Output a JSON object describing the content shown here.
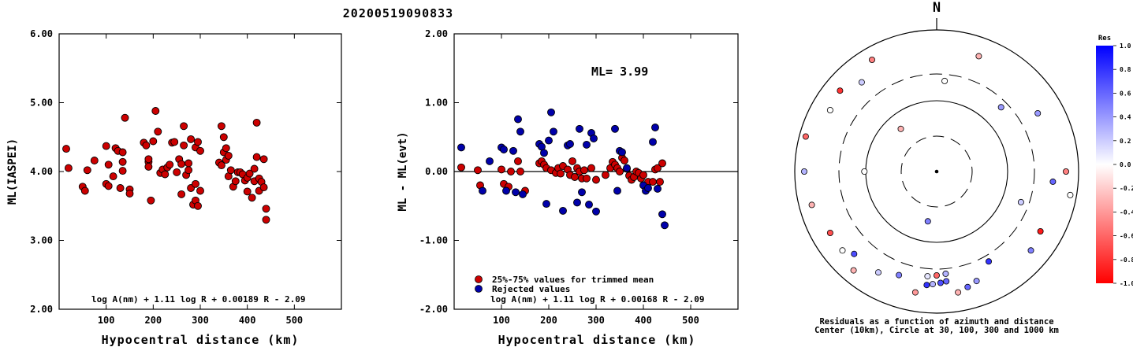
{
  "figure_title": "20200519090833",
  "chart_data": [
    {
      "type": "scatter",
      "ylabel": "ML(IASPEI)",
      "xlabel": "Hypocentral distance (km)",
      "xlim": [
        0,
        600
      ],
      "ylim": [
        2.0,
        6.0
      ],
      "xticks": [
        "100",
        "200",
        "300",
        "400",
        "500"
      ],
      "yticks": [
        "2.00",
        "3.00",
        "4.00",
        "5.00",
        "6.00"
      ],
      "grid": false,
      "formula": "log A(nm) + 1.11 log R + 0.00189 R - 2.09",
      "series": [
        {
          "color": "#cc0000",
          "x": [
            15,
            20,
            50,
            55,
            60,
            75,
            100,
            100,
            105,
            105,
            115,
            120,
            125,
            130,
            135,
            135,
            135,
            140,
            150,
            150,
            180,
            185,
            190,
            190,
            190,
            195,
            200,
            205,
            210,
            215,
            220,
            225,
            230,
            235,
            240,
            245,
            250,
            255,
            260,
            260,
            265,
            265,
            270,
            275,
            275,
            280,
            280,
            285,
            290,
            290,
            290,
            295,
            295,
            300,
            300,
            340,
            345,
            345,
            350,
            350,
            355,
            355,
            360,
            360,
            365,
            370,
            375,
            380,
            385,
            390,
            395,
            400,
            400,
            405,
            410,
            415,
            415,
            420,
            420,
            425,
            425,
            430,
            435,
            435,
            440,
            440
          ],
          "y": [
            4.33,
            4.05,
            3.78,
            3.72,
            4.02,
            4.16,
            4.37,
            3.82,
            3.79,
            4.1,
            3.93,
            4.34,
            4.3,
            3.76,
            4.28,
            4.14,
            4.01,
            4.78,
            3.74,
            3.68,
            4.42,
            4.38,
            4.14,
            4.18,
            4.07,
            3.58,
            4.44,
            4.88,
            4.58,
            3.98,
            4.03,
            3.96,
            4.06,
            4.1,
            4.42,
            4.43,
            3.99,
            4.18,
            4.11,
            3.67,
            4.66,
            4.38,
            3.95,
            4.12,
            4.02,
            3.76,
            4.47,
            3.52,
            4.35,
            3.82,
            3.58,
            4.43,
            3.5,
            3.72,
            4.3,
            4.13,
            4.66,
            4.09,
            4.5,
            4.28,
            4.34,
            4.17,
            4.23,
            3.93,
            4.02,
            3.78,
            3.86,
            3.99,
            3.99,
            3.96,
            3.87,
            3.91,
            3.71,
            3.97,
            3.62,
            4.04,
            3.86,
            4.21,
            4.71,
            3.9,
            3.72,
            3.85,
            4.18,
            3.77,
            3.46,
            3.3
          ]
        }
      ]
    },
    {
      "type": "scatter",
      "ylabel": "ML - ML(evt)",
      "xlabel": "Hypocentral distance (km)",
      "xlim": [
        0,
        600
      ],
      "ylim": [
        -2.0,
        2.0
      ],
      "xticks": [
        "100",
        "200",
        "300",
        "400",
        "500"
      ],
      "yticks": [
        "-2.00",
        "-1.00",
        "0.00",
        "1.00",
        "2.00"
      ],
      "grid": false,
      "annotation": "ML= 3.99",
      "formula": "log A(nm) + 1.11 log R + 0.00168 R - 2.09",
      "legend": [
        "25%-75% values for trimmed mean",
        "Rejected values"
      ],
      "series": [
        {
          "name": "25%-75% values for trimmed mean",
          "color": "#cc0000",
          "x": [
            15,
            50,
            55,
            100,
            105,
            115,
            120,
            135,
            140,
            150,
            180,
            185,
            190,
            195,
            205,
            215,
            220,
            225,
            230,
            240,
            245,
            250,
            255,
            260,
            265,
            270,
            275,
            280,
            290,
            300,
            320,
            330,
            335,
            340,
            345,
            350,
            355,
            360,
            365,
            370,
            375,
            380,
            385,
            390,
            395,
            400,
            410,
            420,
            425,
            430,
            435,
            440
          ],
          "y": [
            0.06,
            0.02,
            -0.2,
            0.03,
            -0.18,
            -0.22,
            0.0,
            0.15,
            0.0,
            -0.28,
            0.12,
            0.15,
            0.1,
            0.05,
            0.02,
            -0.02,
            0.05,
            -0.03,
            0.08,
            0.03,
            -0.05,
            0.15,
            -0.08,
            0.05,
            0.0,
            -0.1,
            0.02,
            -0.1,
            0.05,
            -0.12,
            -0.05,
            0.05,
            0.14,
            0.1,
            0.05,
            0.0,
            0.2,
            0.16,
            0.04,
            -0.06,
            -0.12,
            -0.08,
            0.0,
            -0.02,
            -0.1,
            -0.05,
            -0.15,
            -0.15,
            0.03,
            0.05,
            -0.15,
            0.12
          ]
        },
        {
          "name": "Rejected values",
          "color": "#0000aa",
          "x": [
            15,
            60,
            75,
            100,
            105,
            110,
            125,
            130,
            135,
            140,
            145,
            180,
            185,
            190,
            195,
            200,
            205,
            210,
            230,
            240,
            245,
            260,
            265,
            270,
            280,
            285,
            290,
            295,
            300,
            340,
            345,
            350,
            355,
            365,
            400,
            405,
            410,
            420,
            425,
            430,
            440,
            445
          ],
          "y": [
            0.35,
            -0.28,
            0.15,
            0.35,
            0.32,
            -0.28,
            0.3,
            -0.3,
            0.76,
            0.58,
            -0.33,
            0.4,
            0.36,
            0.27,
            -0.47,
            0.45,
            0.86,
            0.58,
            -0.57,
            0.38,
            0.4,
            -0.45,
            0.62,
            -0.3,
            0.39,
            -0.48,
            0.56,
            0.48,
            -0.58,
            0.62,
            -0.28,
            0.3,
            0.28,
            0.05,
            -0.2,
            -0.28,
            -0.24,
            0.43,
            0.64,
            -0.25,
            -0.62,
            -0.78
          ]
        }
      ]
    },
    {
      "type": "polar",
      "north_label": "N",
      "caption_line1": "Residuals as a function of azimuth and distance",
      "caption_line2": "Center (10km), Circle at 30, 100, 300 and 1000 km",
      "colorbar": {
        "title": "Res",
        "ticks": [
          "1.0",
          "0.8",
          "0.6",
          "0.4",
          "0.2",
          "0.0",
          "-0.2",
          "-0.4",
          "-0.6",
          "-0.8",
          "-1.0"
        ],
        "max_color": "#0000ff",
        "zero_color": "#ffffff",
        "min_color": "#ff0000"
      },
      "rings_km": [
        30,
        100,
        300,
        1000
      ],
      "stations": [
        {
          "az": 90,
          "dist": 800,
          "res": -0.5
        },
        {
          "az": 60,
          "dist": 600,
          "res": 0.4
        },
        {
          "az": 100,
          "dist": 900,
          "res": 0.0
        },
        {
          "az": 120,
          "dist": 650,
          "res": -0.9
        },
        {
          "az": 130,
          "dist": 700,
          "res": 0.5
        },
        {
          "az": 150,
          "dist": 400,
          "res": 0.8
        },
        {
          "az": 160,
          "dist": 600,
          "res": 0.4
        },
        {
          "az": 165,
          "dist": 650,
          "res": 0.6
        },
        {
          "az": 175,
          "dist": 500,
          "res": 0.6
        },
        {
          "az": 178,
          "dist": 520,
          "res": 0.7
        },
        {
          "az": 182,
          "dist": 540,
          "res": 0.3
        },
        {
          "az": 185,
          "dist": 560,
          "res": 0.8
        },
        {
          "az": 170,
          "dist": 700,
          "res": -0.3
        },
        {
          "az": 190,
          "dist": 700,
          "res": -0.4
        },
        {
          "az": 200,
          "dist": 500,
          "res": 0.5
        },
        {
          "az": 210,
          "dist": 600,
          "res": 0.2
        },
        {
          "az": 220,
          "dist": 800,
          "res": -0.3
        },
        {
          "az": 225,
          "dist": 600,
          "res": 0.7
        },
        {
          "az": 230,
          "dist": 700,
          "res": 0.0
        },
        {
          "az": 240,
          "dist": 700,
          "res": -0.7
        },
        {
          "az": 255,
          "dist": 800,
          "res": -0.3
        },
        {
          "az": 270,
          "dist": 850,
          "res": 0.3
        },
        {
          "az": 285,
          "dist": 900,
          "res": -0.6
        },
        {
          "az": 300,
          "dist": 700,
          "res": 0.0
        },
        {
          "az": 310,
          "dist": 750,
          "res": -0.8
        },
        {
          "az": 320,
          "dist": 600,
          "res": 0.2
        },
        {
          "az": 330,
          "dist": 800,
          "res": -0.5
        },
        {
          "az": 20,
          "dist": 700,
          "res": -0.3
        },
        {
          "az": 5,
          "dist": 250,
          "res": 0.0
        },
        {
          "az": 45,
          "dist": 250,
          "res": 0.4
        },
        {
          "az": 110,
          "dist": 240,
          "res": 0.2
        },
        {
          "az": 190,
          "dist": 60,
          "res": 0.5
        },
        {
          "az": 270,
          "dist": 110,
          "res": 0.0
        },
        {
          "az": 320,
          "dist": 70,
          "res": -0.3
        },
        {
          "az": 180,
          "dist": 400,
          "res": -0.6
        },
        {
          "az": 175,
          "dist": 380,
          "res": 0.3
        },
        {
          "az": 185,
          "dist": 420,
          "res": 0.1
        },
        {
          "az": 95,
          "dist": 600,
          "res": 0.6
        }
      ]
    }
  ]
}
